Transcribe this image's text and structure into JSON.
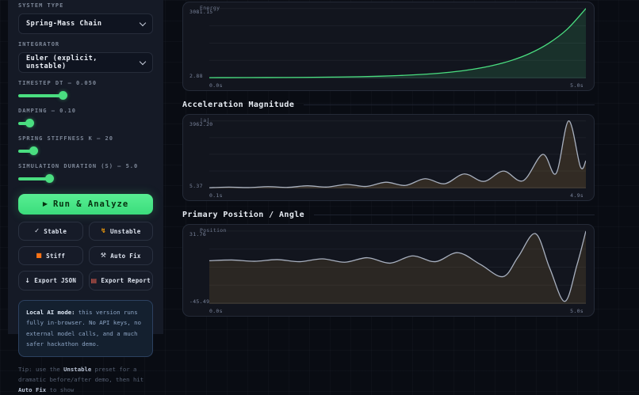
{
  "sidebar": {
    "system_type": {
      "label": "SYSTEM TYPE",
      "value": "Spring-Mass Chain"
    },
    "integrator": {
      "label": "INTEGRATOR",
      "value": "Euler (explicit, unstable)"
    },
    "sliders": [
      {
        "label": "TIMESTEP DT — 0.050",
        "percent": 33
      },
      {
        "label": "DAMPING — 0.10",
        "percent": 8
      },
      {
        "label": "SPRING STIFFNESS K — 20",
        "percent": 11
      },
      {
        "label": "SIMULATION DURATION (S) — 5.0",
        "percent": 23
      }
    ],
    "run_button": {
      "icon": "▶",
      "label": "Run & Analyze"
    },
    "preset_buttons": [
      {
        "icon": "✓",
        "label": "Stable",
        "icon_color": "#cdd6e4"
      },
      {
        "icon": "↯",
        "label": "Unstable",
        "icon_color": "#f59e0b"
      },
      {
        "icon": "■",
        "label": "Stiff",
        "icon_color": "#f97316"
      },
      {
        "icon": "⚒",
        "label": "Auto Fix",
        "icon_color": "#cdd6e4"
      },
      {
        "icon": "↓",
        "label": "Export JSON",
        "icon_color": "#cdd6e4"
      },
      {
        "icon": "▤",
        "label": "Export Report",
        "icon_color": "#ef6351"
      }
    ],
    "info_note": {
      "bold": "Local AI mode:",
      "text": " this version runs fully in-browser. No API keys, no external model calls, and a much safer hackathon demo."
    },
    "tip": {
      "t1": "Tip: use the ",
      "b1": "Unstable",
      "t2": " preset for a dramatic before/after demo, then hit ",
      "b2": "Auto Fix",
      "t3": " to show"
    }
  },
  "main": {
    "section_titles": [
      "Acceleration Magnitude",
      "Primary Position / Angle"
    ]
  },
  "chart_data": [
    {
      "type": "area",
      "title": "Energy",
      "series_label": "Energy",
      "ymax_label": "3081.15",
      "ymin_label": "2.88",
      "x_start_label": "0.0s",
      "x_end_label": "5.0s",
      "line_color": "#4ade80",
      "fill_color": "rgba(74,222,128,0.14)",
      "x_range": [
        0,
        5
      ],
      "y_range": [
        2.88,
        3081.15
      ],
      "grid": true,
      "points": [
        [
          0,
          2.88
        ],
        [
          0.25,
          4.1
        ],
        [
          0.5,
          5.8
        ],
        [
          0.75,
          8.2
        ],
        [
          1,
          11.6
        ],
        [
          1.25,
          16.4
        ],
        [
          1.5,
          23.3
        ],
        [
          1.75,
          33
        ],
        [
          2,
          46.7
        ],
        [
          2.25,
          66.2
        ],
        [
          2.5,
          93.8
        ],
        [
          2.75,
          133
        ],
        [
          3,
          188
        ],
        [
          3.25,
          267
        ],
        [
          3.5,
          378
        ],
        [
          3.75,
          535
        ],
        [
          4,
          758
        ],
        [
          4.25,
          1074
        ],
        [
          4.5,
          1521
        ],
        [
          4.75,
          2155
        ],
        [
          5,
          3081.15
        ]
      ]
    },
    {
      "type": "area",
      "title": "Acceleration Magnitude",
      "series_label": "|a|",
      "ymax_label": "3962.20",
      "ymin_label": "5.37",
      "x_start_label": "0.1s",
      "x_end_label": "4.9s",
      "line_color": "#a8b0bf",
      "fill_color": "rgba(216,164,66,0.16)",
      "x_range": [
        0.1,
        4.9
      ],
      "y_range": [
        5.37,
        3962.2
      ],
      "grid": true,
      "points": [
        [
          0.1,
          5.37
        ],
        [
          0.35,
          40
        ],
        [
          0.6,
          15
        ],
        [
          0.85,
          70
        ],
        [
          1.1,
          25
        ],
        [
          1.35,
          120
        ],
        [
          1.6,
          45
        ],
        [
          1.85,
          200
        ],
        [
          2.1,
          80
        ],
        [
          2.35,
          330
        ],
        [
          2.6,
          140
        ],
        [
          2.85,
          540
        ],
        [
          3.1,
          240
        ],
        [
          3.35,
          820
        ],
        [
          3.6,
          380
        ],
        [
          3.85,
          990
        ],
        [
          4.1,
          420
        ],
        [
          4.35,
          1980
        ],
        [
          4.52,
          850
        ],
        [
          4.68,
          3962.2
        ],
        [
          4.83,
          1250
        ],
        [
          4.9,
          1600
        ]
      ]
    },
    {
      "type": "area",
      "title": "Primary Position / Angle",
      "series_label": "Position",
      "ymax_label": "31.76",
      "ymin_label": "-45.49",
      "x_start_label": "0.0s",
      "x_end_label": "5.0s",
      "line_color": "#a8b0bf",
      "fill_color": "rgba(216,164,66,0.13)",
      "x_range": [
        0,
        5
      ],
      "y_range": [
        -45.49,
        31.76
      ],
      "grid": true,
      "points": [
        [
          0,
          0
        ],
        [
          0.3,
          0.8
        ],
        [
          0.6,
          -0.6
        ],
        [
          0.9,
          1.2
        ],
        [
          1.2,
          -1
        ],
        [
          1.5,
          2
        ],
        [
          1.8,
          -1.6
        ],
        [
          2.1,
          3.2
        ],
        [
          2.4,
          -2.6
        ],
        [
          2.7,
          5.2
        ],
        [
          3,
          -1
        ],
        [
          3.3,
          8.6
        ],
        [
          3.6,
          -4
        ],
        [
          3.9,
          -17
        ],
        [
          4.1,
          4
        ],
        [
          4.33,
          29
        ],
        [
          4.52,
          -8
        ],
        [
          4.72,
          -43.5
        ],
        [
          4.88,
          -5
        ],
        [
          5,
          31.76
        ]
      ]
    }
  ]
}
